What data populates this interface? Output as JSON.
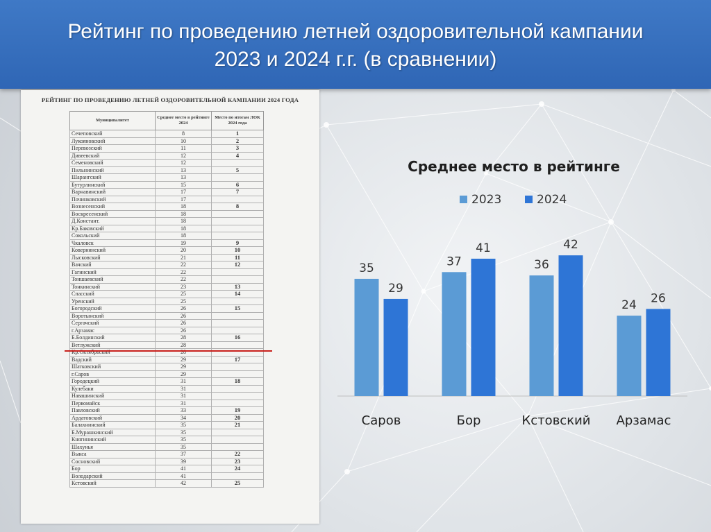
{
  "slide": {
    "title_line1": "Рейтинг по проведению летней оздоровительной кампании",
    "title_line2": "2023 и 2024 г.г. (в сравнении)"
  },
  "document": {
    "heading": "РЕЙТИНГ ПО ПРОВЕДЕНИЮ ЛЕТНЕЙ ОЗДОРОВИТЕЛЬНОЙ КАМПАНИИ 2024 ГОДА",
    "columns": [
      "Муниципалитет",
      "Среднее место в рейтинге 2024",
      "Место по итогам ЛОК 2024 года"
    ],
    "rows": [
      [
        "Сечеповский",
        "8",
        "1"
      ],
      [
        "Лукояновский",
        "10",
        "2"
      ],
      [
        "Перевозский",
        "11",
        "3"
      ],
      [
        "Дивеевский",
        "12",
        "4"
      ],
      [
        "Семеновский",
        "12",
        ""
      ],
      [
        "Пильнинский",
        "13",
        "5"
      ],
      [
        "Шарангский",
        "13",
        ""
      ],
      [
        "Бутурлинский",
        "15",
        "6"
      ],
      [
        "Варнавинский",
        "17",
        "7"
      ],
      [
        "Починковский",
        "17",
        ""
      ],
      [
        "Вознесенский",
        "18",
        "8"
      ],
      [
        "Воскресенский",
        "18",
        ""
      ],
      [
        "Д.Констант.",
        "18",
        ""
      ],
      [
        "Кр.Баковский",
        "18",
        ""
      ],
      [
        "Сокольский",
        "18",
        ""
      ],
      [
        "Чкаловск",
        "19",
        "9"
      ],
      [
        "Ковернинский",
        "20",
        "10"
      ],
      [
        "Лысковский",
        "21",
        "11"
      ],
      [
        "Вачский",
        "22",
        "12"
      ],
      [
        "Гагинский",
        "22",
        ""
      ],
      [
        "Тоншаевский",
        "22",
        ""
      ],
      [
        "Тонкинский",
        "23",
        "13"
      ],
      [
        "Спасский",
        "25",
        "14"
      ],
      [
        "Уренский",
        "25",
        ""
      ],
      [
        "Богородский",
        "26",
        "15"
      ],
      [
        "Воротынский",
        "26",
        ""
      ],
      [
        "Сергачский",
        "26",
        ""
      ],
      [
        "г.Арзамас",
        "26",
        ""
      ],
      [
        "Б.Болдинский",
        "28",
        "16"
      ],
      [
        "Ветлужский",
        "28",
        ""
      ],
      [
        "Кр.Октябрьский",
        "28",
        ""
      ],
      [
        "Вадский",
        "29",
        "17"
      ],
      [
        "Шатковский",
        "29",
        ""
      ],
      [
        "г.Саров",
        "29",
        ""
      ],
      [
        "Городецкий",
        "31",
        "18"
      ],
      [
        "Кулебаки",
        "31",
        ""
      ],
      [
        "Навашинский",
        "31",
        ""
      ],
      [
        "Первомайск",
        "31",
        ""
      ],
      [
        "Павловский",
        "33",
        "19"
      ],
      [
        "Ардатовский",
        "34",
        "20"
      ],
      [
        "Балахнинский",
        "35",
        "21"
      ],
      [
        "Б.Мурашкинский",
        "35",
        ""
      ],
      [
        "Княгининский",
        "35",
        ""
      ],
      [
        "Шахунья",
        "35",
        ""
      ],
      [
        "Выкса",
        "37",
        "22"
      ],
      [
        "Сосновский",
        "39",
        "23"
      ],
      [
        "Бор",
        "41",
        "24"
      ],
      [
        "Володарский",
        "41",
        ""
      ],
      [
        "Кстовский",
        "42",
        "25"
      ]
    ]
  },
  "colors": {
    "series_2023": "#5b9bd5",
    "series_2024": "#2e75d6",
    "header": "#3470c0",
    "separator_line": "#c8201c"
  },
  "chart_data": {
    "type": "bar",
    "title": "Среднее место в рейтинге",
    "categories": [
      "Саров",
      "Бор",
      "Кстовский",
      "Арзамас"
    ],
    "series": [
      {
        "name": "2023",
        "values": [
          35,
          37,
          36,
          24
        ]
      },
      {
        "name": "2024",
        "values": [
          29,
          41,
          42,
          26
        ]
      }
    ],
    "ylim": [
      0,
      50
    ],
    "legend": "top",
    "grid": false,
    "data_labels": true
  }
}
